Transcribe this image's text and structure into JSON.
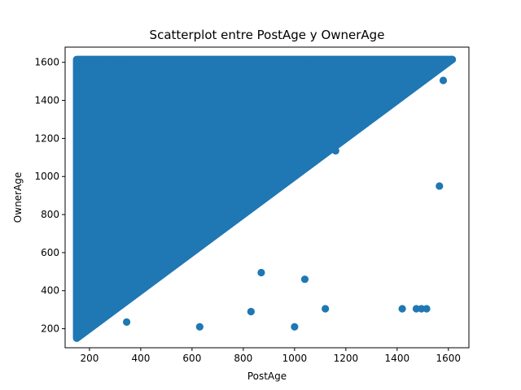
{
  "chart_data": {
    "type": "scatter",
    "title": "Scatterplot entre PostAge y OwnerAge",
    "xlabel": "PostAge",
    "ylabel": "OwnerAge",
    "xlim": [
      105,
      1680
    ],
    "ylim": [
      100,
      1680
    ],
    "xticks": [
      200,
      400,
      600,
      800,
      1000,
      1200,
      1400,
      1600
    ],
    "yticks": [
      200,
      400,
      600,
      800,
      1000,
      1200,
      1400,
      1600
    ],
    "color": "#1f77b4",
    "grid": false,
    "dense_region": {
      "description_polygon_data_units": [
        [
          150,
          150
        ],
        [
          150,
          1615
        ],
        [
          1615,
          1615
        ]
      ]
    },
    "series": [
      {
        "x": [
          345,
          630,
          870,
          830,
          1040,
          1000,
          1120,
          1420,
          1475,
          1495,
          1515,
          1565,
          1580,
          1160,
          1615,
          160,
          185,
          210,
          240,
          280,
          320,
          360,
          420,
          500,
          560,
          640,
          760,
          900,
          1050,
          1200,
          1350,
          1500,
          1560,
          1590
        ],
        "y": [
          235,
          210,
          495,
          290,
          460,
          210,
          305,
          305,
          305,
          305,
          305,
          950,
          1505,
          1135,
          1615,
          1600,
          1610,
          1612,
          1605,
          1612,
          1608,
          1614,
          1610,
          1612,
          1608,
          1614,
          1610,
          1612,
          1610,
          1612,
          1614,
          1612,
          1610,
          1614
        ]
      }
    ]
  }
}
